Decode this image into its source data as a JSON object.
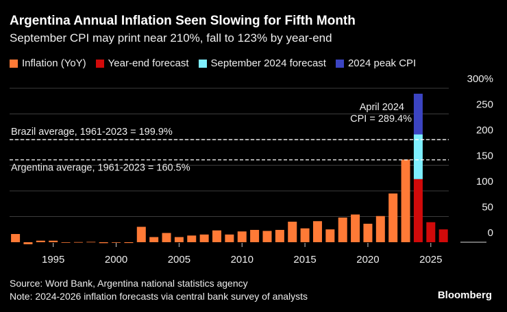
{
  "title": "Argentina Annual Inflation Seen Slowing for Fifth Month",
  "subtitle": "September CPI may print near 210%, fall to 123% by year-end",
  "legend": [
    {
      "label": "Inflation (YoY)",
      "color": "#ff7a36"
    },
    {
      "label": "Year-end forecast",
      "color": "#d10a0a"
    },
    {
      "label": "September 2024 forecast",
      "color": "#7eefff"
    },
    {
      "label": "2024 peak CPI",
      "color": "#3b44c2"
    }
  ],
  "chart_data": {
    "type": "bar",
    "stacked": true,
    "years": [
      1992,
      1993,
      1994,
      1995,
      1996,
      1997,
      1998,
      1999,
      2000,
      2001,
      2002,
      2003,
      2004,
      2005,
      2006,
      2007,
      2008,
      2009,
      2010,
      2011,
      2012,
      2013,
      2014,
      2015,
      2016,
      2017,
      2018,
      2019,
      2020,
      2021,
      2022,
      2023,
      2024,
      2025,
      2026
    ],
    "inflation_yoy": [
      16,
      -4,
      3,
      3,
      0,
      0.3,
      0.7,
      -1.8,
      -0.7,
      -1.5,
      30,
      10,
      18,
      10,
      13,
      15,
      23,
      15,
      21,
      24,
      22,
      24,
      40,
      27,
      41,
      25,
      48,
      54,
      36,
      51,
      95,
      161,
      null,
      null,
      null
    ],
    "year_end_forecast": {
      "2024": 123,
      "2025": 39,
      "2026": 25
    },
    "september_2024_forecast": 210,
    "peak_2024_cpi": 289.4,
    "reference_lines": [
      {
        "label": "Brazil average, 1961-2023 = 199.9%",
        "value": 199.9
      },
      {
        "label": "Argentina average, 1961-2023 = 160.5%",
        "value": 160.5
      }
    ],
    "annotation": [
      "April 2024",
      "CPI = 289.4%"
    ],
    "yticks": [
      "0",
      "50",
      "100",
      "150",
      "200",
      "250",
      "300%"
    ],
    "ytick_values": [
      0,
      50,
      100,
      150,
      200,
      250,
      300
    ],
    "xticks": [
      "1995",
      "2000",
      "2005",
      "2010",
      "2015",
      "2020",
      "2025"
    ],
    "xtick_values": [
      1995,
      2000,
      2005,
      2010,
      2015,
      2020,
      2025
    ],
    "ylim": [
      0,
      300
    ],
    "grid": true,
    "yaxis_side": "right"
  },
  "footer": {
    "source": "Source: Word Bank, Argentina national statistics agency",
    "note": "Note: 2024-2026 inflation forecasts via central bank survey of analysts",
    "brand": "Bloomberg"
  }
}
